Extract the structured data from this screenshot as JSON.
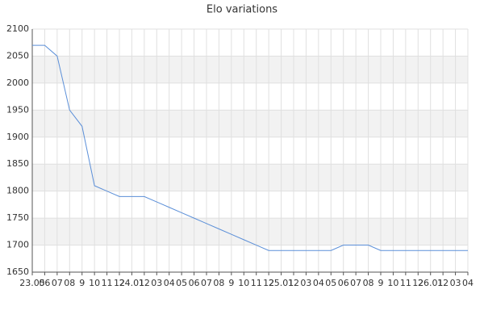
{
  "chart_data": {
    "type": "line",
    "title": "Elo variations",
    "categories": [
      "23.05",
      "06",
      "07",
      "08",
      "9",
      "10",
      "11",
      "12",
      "24.01",
      "12",
      "03",
      "04",
      "05",
      "06",
      "07",
      "08",
      "9",
      "10",
      "11",
      "12",
      "25.01",
      "12",
      "03",
      "04",
      "05",
      "06",
      "07",
      "08",
      "9",
      "10",
      "11",
      "12",
      "26.01",
      "12",
      "03",
      "04"
    ],
    "series": [
      {
        "color": "#5b8fd8",
        "values": [
          2070,
          2070,
          2050,
          1950,
          1920,
          1810,
          1800,
          1790,
          1790,
          1790,
          1780,
          1770,
          1760,
          1750,
          1740,
          1730,
          1720,
          1710,
          1700,
          1690,
          1690,
          1690,
          1690,
          1690,
          1690,
          1700,
          1700,
          1700,
          1690,
          1690,
          1690,
          1690,
          1690,
          1690,
          1690,
          1690
        ]
      }
    ],
    "ylim": [
      1650,
      2100
    ],
    "yticks": [
      1650,
      1700,
      1750,
      1800,
      1850,
      1900,
      1950,
      2000,
      2050,
      2100
    ],
    "grid": true
  }
}
